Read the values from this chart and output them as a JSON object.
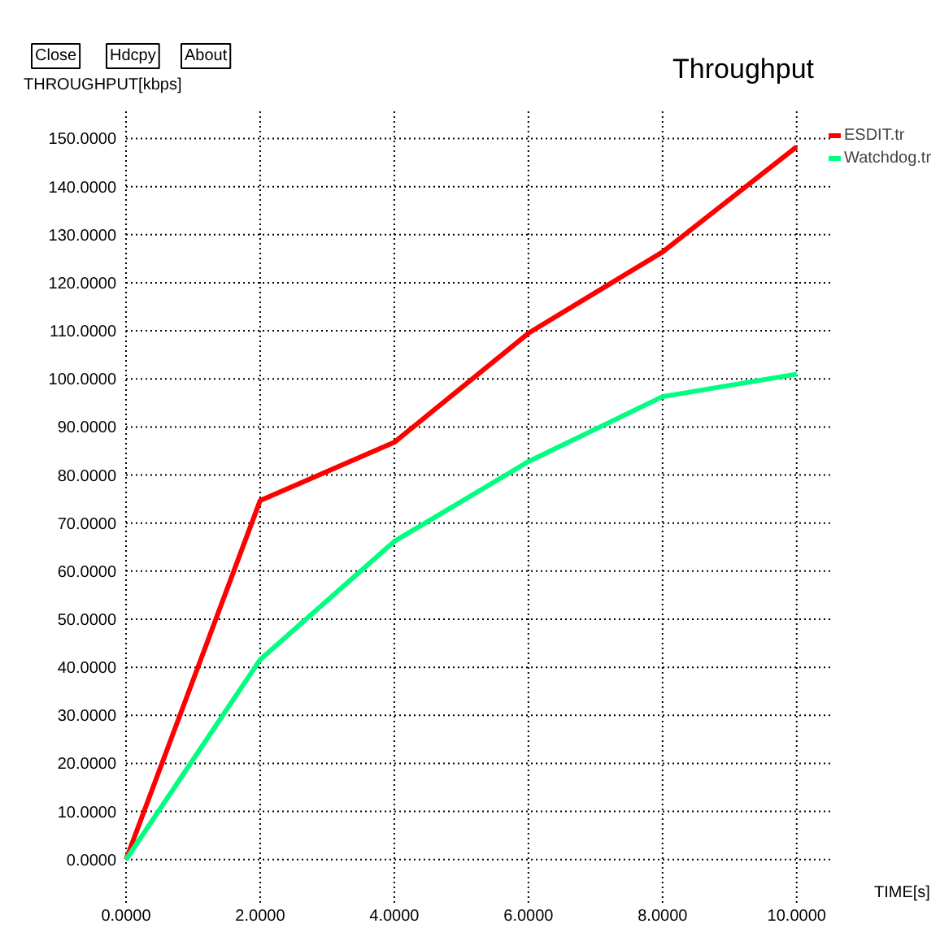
{
  "chart_data": {
    "type": "line",
    "title": "Throughput",
    "xlabel": "TIME[s]",
    "ylabel": "THROUGHPUT[kbps]",
    "annotations": [
      "Close",
      "Hdcpy",
      "About"
    ],
    "x": [
      0,
      2,
      4,
      6,
      8,
      10
    ],
    "series": [
      {
        "name": "ESDIT.tr",
        "color": "#ff0000",
        "values": [
          0,
          74.7,
          86.8,
          109.5,
          126.4,
          148.3
        ]
      },
      {
        "name": "Watchdog.tr",
        "color": "#00ff80",
        "values": [
          0,
          41.6,
          66.2,
          82.8,
          96.3,
          101.0
        ]
      }
    ],
    "xlim": [
      0,
      10.5
    ],
    "ylim": [
      -9,
      156
    ],
    "xticks": [
      {
        "value": 0,
        "label": "0.0000"
      },
      {
        "value": 2,
        "label": "2.0000"
      },
      {
        "value": 4,
        "label": "4.0000"
      },
      {
        "value": 6,
        "label": "6.0000"
      },
      {
        "value": 8,
        "label": "8.0000"
      },
      {
        "value": 10,
        "label": "10.0000"
      }
    ],
    "yticks": [
      {
        "value": 0,
        "label": "0.0000"
      },
      {
        "value": 10,
        "label": "10.0000"
      },
      {
        "value": 20,
        "label": "20.0000"
      },
      {
        "value": 30,
        "label": "30.0000"
      },
      {
        "value": 40,
        "label": "40.0000"
      },
      {
        "value": 50,
        "label": "50.0000"
      },
      {
        "value": 60,
        "label": "60.0000"
      },
      {
        "value": 70,
        "label": "70.0000"
      },
      {
        "value": 80,
        "label": "80.0000"
      },
      {
        "value": 90,
        "label": "90.0000"
      },
      {
        "value": 100,
        "label": "100.0000"
      },
      {
        "value": 110,
        "label": "110.0000"
      },
      {
        "value": 120,
        "label": "120.0000"
      },
      {
        "value": 130,
        "label": "130.0000"
      },
      {
        "value": 140,
        "label": "140.0000"
      },
      {
        "value": 150,
        "label": "150.0000"
      }
    ],
    "grid": true,
    "legend": "top right",
    "marker": "none",
    "line_style": "solid"
  }
}
